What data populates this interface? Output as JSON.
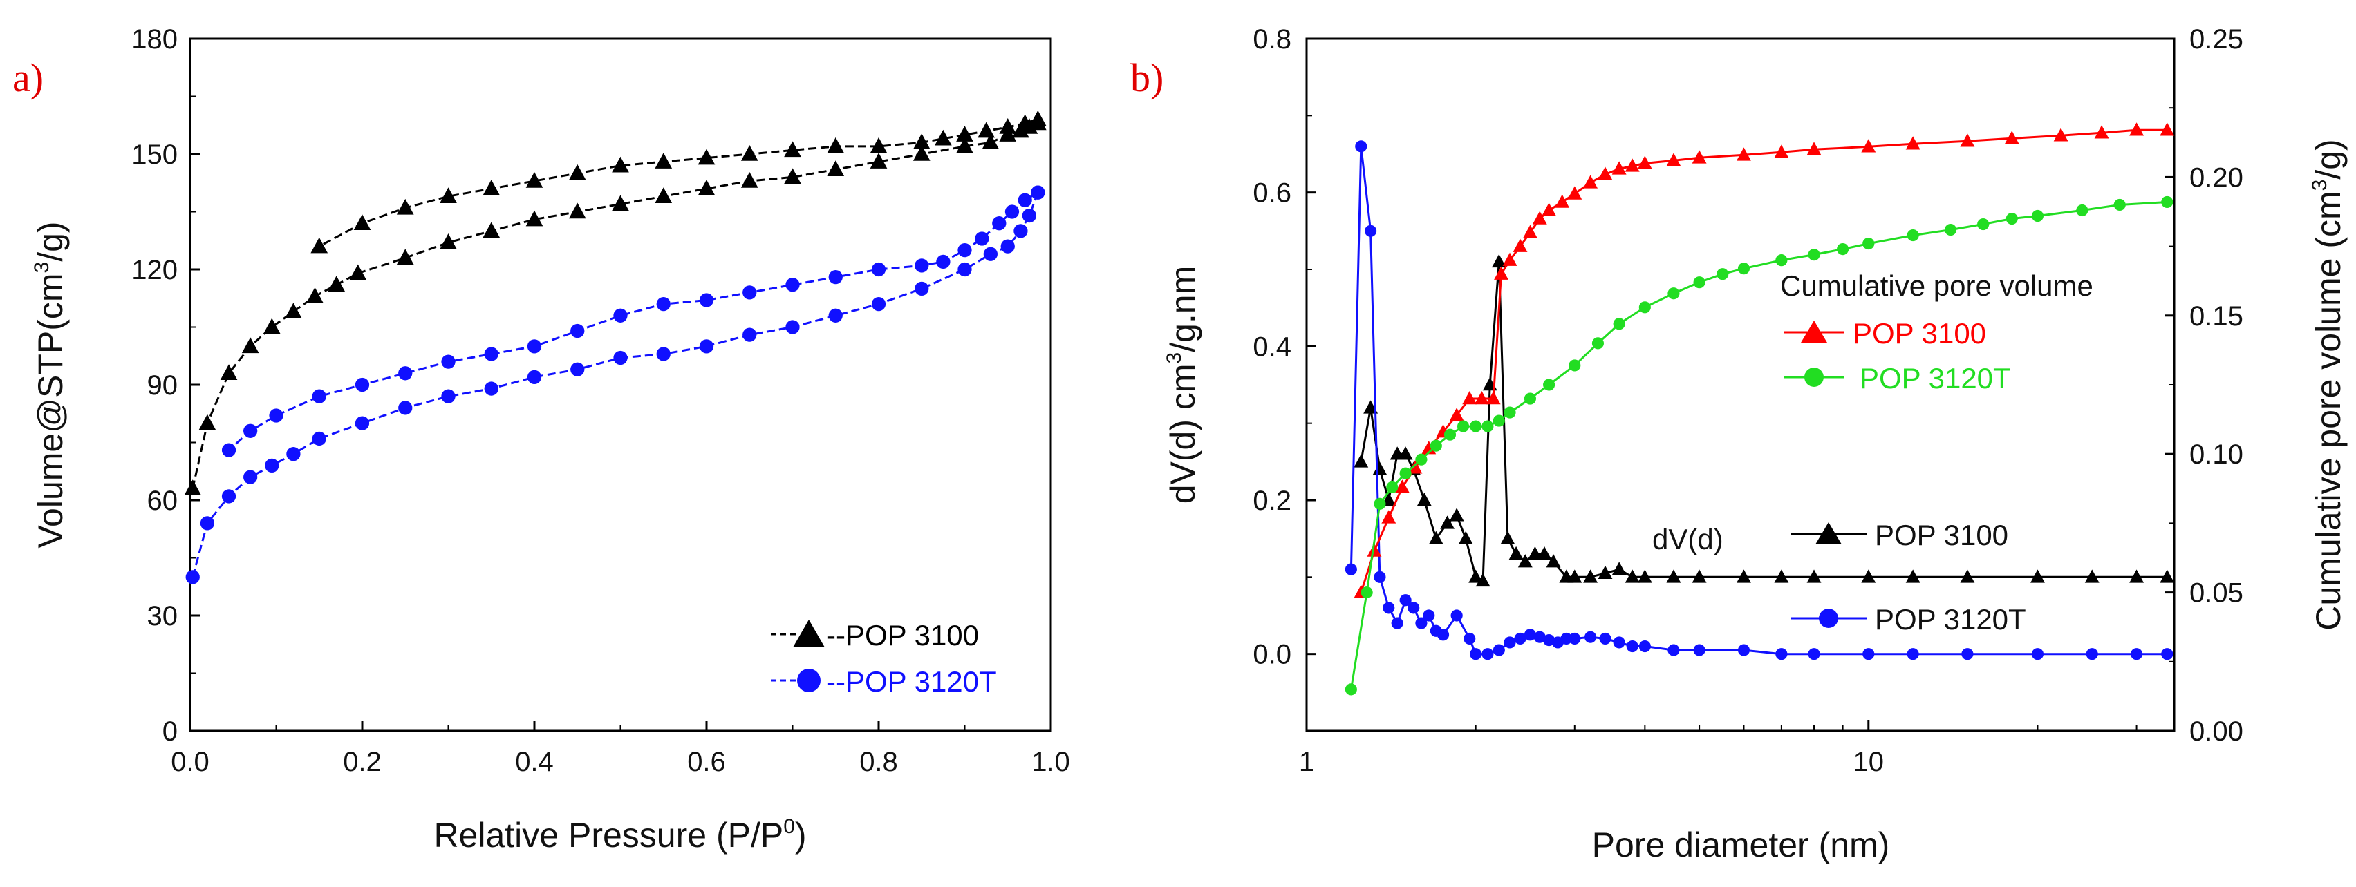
{
  "chart_data": [
    {
      "panel_label": "a)",
      "type": "line",
      "xlabel": "Relative Pressure (P/P",
      "xlabel_sup": "0",
      "xlabel_end": ")",
      "ylabel": "Volume@STP(cm",
      "ylabel_sup": "3",
      "ylabel_end": "/g)",
      "xlim": [
        0,
        1.0
      ],
      "ylim": [
        0,
        180
      ],
      "xticks": [
        "0.0",
        "0.2",
        "0.4",
        "0.6",
        "0.8",
        "1.0"
      ],
      "yticks": [
        "0",
        "30",
        "60",
        "90",
        "120",
        "150",
        "180"
      ],
      "series": [
        {
          "name": "POP 3100",
          "legend_label": "--POP 3100",
          "color": "#000000",
          "marker": "triangle",
          "adsorption": {
            "x": [
              0.003,
              0.02,
              0.045,
              0.07,
              0.095,
              0.12,
              0.145,
              0.17,
              0.195,
              0.25,
              0.3,
              0.35,
              0.4,
              0.45,
              0.5,
              0.55,
              0.6,
              0.65,
              0.7,
              0.75,
              0.8,
              0.85,
              0.9,
              0.93,
              0.95,
              0.965,
              0.975,
              0.985
            ],
            "y": [
              63,
              80,
              93,
              100,
              105,
              109,
              113,
              116,
              119,
              123,
              127,
              130,
              133,
              135,
              137,
              139,
              141,
              143,
              144,
              146,
              148,
              150,
              152,
              153,
              155,
              156,
              157,
              158
            ]
          },
          "desorption": {
            "x": [
              0.985,
              0.97,
              0.95,
              0.925,
              0.9,
              0.875,
              0.85,
              0.8,
              0.75,
              0.7,
              0.65,
              0.6,
              0.55,
              0.5,
              0.45,
              0.4,
              0.35,
              0.3,
              0.25,
              0.2,
              0.15
            ],
            "y": [
              159,
              158,
              157,
              156,
              155,
              154,
              153,
              152,
              152,
              151,
              150,
              149,
              148,
              147,
              145,
              143,
              141,
              139,
              136,
              132,
              126
            ]
          }
        },
        {
          "name": "POP 3120T",
          "legend_label": "--POP 3120T",
          "color": "#1010ff",
          "marker": "circle",
          "adsorption": {
            "x": [
              0.003,
              0.02,
              0.045,
              0.07,
              0.095,
              0.12,
              0.15,
              0.2,
              0.25,
              0.3,
              0.35,
              0.4,
              0.45,
              0.5,
              0.55,
              0.6,
              0.65,
              0.7,
              0.75,
              0.8,
              0.85,
              0.9,
              0.93,
              0.95,
              0.965,
              0.975,
              0.985
            ],
            "y": [
              40,
              54,
              61,
              66,
              69,
              72,
              76,
              80,
              84,
              87,
              89,
              92,
              94,
              97,
              98,
              100,
              103,
              105,
              108,
              111,
              115,
              120,
              124,
              126,
              130,
              134,
              140
            ]
          },
          "desorption": {
            "x": [
              0.985,
              0.97,
              0.955,
              0.94,
              0.92,
              0.9,
              0.875,
              0.85,
              0.8,
              0.75,
              0.7,
              0.65,
              0.6,
              0.55,
              0.5,
              0.45,
              0.4,
              0.35,
              0.3,
              0.25,
              0.2,
              0.15,
              0.1,
              0.07,
              0.045
            ],
            "y": [
              140,
              138,
              135,
              132,
              128,
              125,
              122,
              121,
              120,
              118,
              116,
              114,
              112,
              111,
              108,
              104,
              100,
              98,
              96,
              93,
              90,
              87,
              82,
              78,
              73
            ]
          }
        }
      ]
    },
    {
      "panel_label": "b)",
      "type": "line",
      "x_scale": "log",
      "xlabel": "Pore diameter (nm)",
      "ylabel": "dV(d) cm",
      "ylabel_sup": "3",
      "ylabel_end": "/g.nm",
      "y2label": "Cumulative pore volume (cm",
      "y2label_sup": "3",
      "y2label_end": "/g)",
      "xlim": [
        1,
        35
      ],
      "ylim": [
        -0.1,
        0.8
      ],
      "y2lim": [
        0,
        0.25
      ],
      "xticks": [
        "1",
        "10"
      ],
      "yticks": [
        "0.0",
        "0.2",
        "0.4",
        "0.6",
        "0.8"
      ],
      "y2ticks": [
        "0.00",
        "0.05",
        "0.10",
        "0.15",
        "0.20",
        "0.25"
      ],
      "legend_cumulative_title": "Cumulative pore volume",
      "legend_dvd_title": "dV(d)",
      "cumulative_series": [
        {
          "name": "POP 3100",
          "color": "#ff0000",
          "marker": "triangle",
          "x": [
            1.25,
            1.32,
            1.4,
            1.48,
            1.56,
            1.65,
            1.75,
            1.85,
            1.95,
            2.05,
            2.15,
            2.22,
            2.3,
            2.4,
            2.5,
            2.6,
            2.7,
            2.85,
            3.0,
            3.2,
            3.4,
            3.6,
            3.8,
            4.0,
            4.5,
            5,
            6,
            7,
            8,
            10,
            12,
            15,
            18,
            22,
            26,
            30,
            34
          ],
          "y": [
            0.05,
            0.065,
            0.077,
            0.088,
            0.095,
            0.102,
            0.108,
            0.114,
            0.12,
            0.12,
            0.12,
            0.165,
            0.17,
            0.175,
            0.18,
            0.185,
            0.188,
            0.191,
            0.194,
            0.198,
            0.201,
            0.203,
            0.204,
            0.205,
            0.206,
            0.207,
            0.208,
            0.209,
            0.21,
            0.211,
            0.212,
            0.213,
            0.214,
            0.215,
            0.216,
            0.217,
            0.217
          ]
        },
        {
          "name": "POP 3120T",
          "legend_label": " POP 3120T",
          "color": "#22dd22",
          "marker": "circle",
          "x": [
            1.2,
            1.28,
            1.35,
            1.42,
            1.5,
            1.6,
            1.7,
            1.8,
            1.9,
            2.0,
            2.1,
            2.2,
            2.3,
            2.5,
            2.7,
            3.0,
            3.3,
            3.6,
            4.0,
            4.5,
            5.0,
            5.5,
            6,
            7,
            8,
            9,
            10,
            12,
            14,
            16,
            18,
            20,
            24,
            28,
            34
          ],
          "y": [
            0.015,
            0.05,
            0.082,
            0.088,
            0.093,
            0.098,
            0.103,
            0.107,
            0.11,
            0.11,
            0.11,
            0.112,
            0.115,
            0.12,
            0.125,
            0.132,
            0.14,
            0.147,
            0.153,
            0.158,
            0.162,
            0.165,
            0.167,
            0.17,
            0.172,
            0.174,
            0.176,
            0.179,
            0.181,
            0.183,
            0.185,
            0.186,
            0.188,
            0.19,
            0.191
          ]
        }
      ],
      "dvd_series": [
        {
          "name": "POP 3100",
          "color": "#000000",
          "marker": "triangle",
          "x": [
            1.25,
            1.3,
            1.35,
            1.4,
            1.45,
            1.5,
            1.55,
            1.62,
            1.7,
            1.78,
            1.85,
            1.92,
            2.0,
            2.06,
            2.12,
            2.2,
            2.28,
            2.36,
            2.45,
            2.55,
            2.65,
            2.75,
            2.9,
            3.0,
            3.2,
            3.4,
            3.6,
            3.8,
            4.0,
            4.5,
            5,
            6,
            7,
            8,
            10,
            12,
            15,
            20,
            25,
            30,
            34
          ],
          "y": [
            0.25,
            0.32,
            0.24,
            0.2,
            0.26,
            0.26,
            0.24,
            0.2,
            0.15,
            0.17,
            0.18,
            0.15,
            0.1,
            0.095,
            0.35,
            0.51,
            0.15,
            0.13,
            0.12,
            0.13,
            0.13,
            0.12,
            0.1,
            0.1,
            0.1,
            0.105,
            0.11,
            0.1,
            0.1,
            0.1,
            0.1,
            0.1,
            0.1,
            0.1,
            0.1,
            0.1,
            0.1,
            0.1,
            0.1,
            0.1,
            0.1
          ]
        },
        {
          "name": "POP 3120T",
          "color": "#1010ff",
          "marker": "circle",
          "x": [
            1.2,
            1.25,
            1.3,
            1.35,
            1.4,
            1.45,
            1.5,
            1.55,
            1.6,
            1.65,
            1.7,
            1.75,
            1.85,
            1.95,
            2.0,
            2.1,
            2.2,
            2.3,
            2.4,
            2.5,
            2.6,
            2.7,
            2.8,
            2.9,
            3.0,
            3.2,
            3.4,
            3.6,
            3.8,
            4.0,
            4.5,
            5,
            6,
            7,
            8,
            10,
            12,
            15,
            20,
            25,
            30,
            34
          ],
          "y": [
            0.11,
            0.66,
            0.55,
            0.1,
            0.06,
            0.04,
            0.07,
            0.06,
            0.04,
            0.05,
            0.03,
            0.025,
            0.05,
            0.02,
            0.0,
            0.0,
            0.005,
            0.015,
            0.02,
            0.025,
            0.022,
            0.018,
            0.015,
            0.02,
            0.02,
            0.022,
            0.02,
            0.015,
            0.01,
            0.01,
            0.005,
            0.005,
            0.005,
            0.0,
            0.0,
            0.0,
            0.0,
            0.0,
            0.0,
            0.0,
            0.0,
            0.0
          ]
        }
      ]
    }
  ]
}
